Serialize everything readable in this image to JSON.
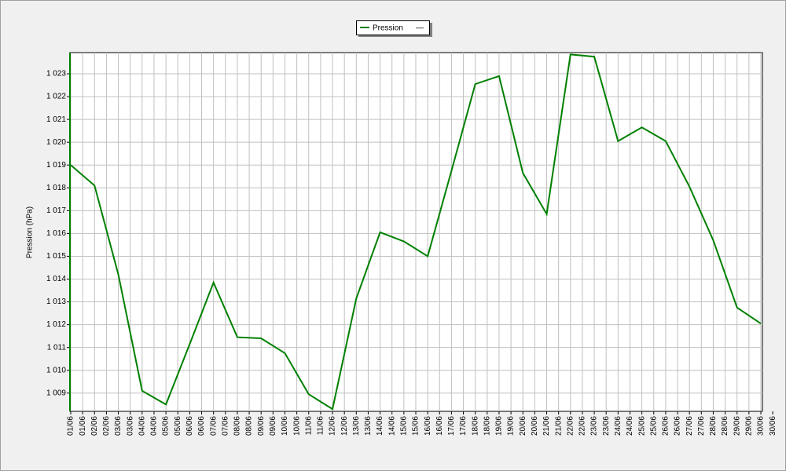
{
  "chart_data": {
    "type": "line",
    "y_label": "Pression (hPa)",
    "legend_extra": "—",
    "x_tick_labels": [
      "01/06",
      "01/06",
      "02/06",
      "02/06",
      "03/06",
      "03/06",
      "04/06",
      "04/06",
      "05/06",
      "05/06",
      "06/06",
      "06/06",
      "07/06",
      "07/06",
      "08/06",
      "08/06",
      "09/06",
      "09/06",
      "10/06",
      "10/06",
      "11/06",
      "11/06",
      "12/06",
      "12/06",
      "13/06",
      "13/06",
      "14/06",
      "14/06",
      "15/06",
      "15/06",
      "16/06",
      "16/06",
      "17/06",
      "17/06",
      "18/06",
      "18/06",
      "19/06",
      "19/06",
      "20/06",
      "20/06",
      "21/06",
      "21/06",
      "22/06",
      "22/06",
      "23/06",
      "23/06",
      "24/06",
      "24/06",
      "25/06",
      "25/06",
      "26/06",
      "26/06",
      "27/06",
      "27/06",
      "28/06",
      "28/06",
      "29/06",
      "29/06",
      "30/06",
      "30/06"
    ],
    "series": [
      {
        "name": "Pression",
        "color": "#008000",
        "values": [
          1019.0,
          1018.1,
          1014.2,
          1009.1,
          1008.5,
          1011.15,
          1013.85,
          1011.45,
          1011.4,
          1010.75,
          1008.95,
          1008.3,
          1013.15,
          1016.05,
          1015.65,
          1015.0,
          1018.75,
          1022.55,
          1022.9,
          1018.65,
          1016.85,
          1023.85,
          1023.75,
          1020.05,
          1020.65,
          1020.05,
          1018.05,
          1015.7,
          1012.75,
          1012.05
        ]
      }
    ],
    "ylim": [
      1008.2,
      1023.93
    ],
    "yticks": [
      {
        "value": 1009,
        "label": "1 009"
      },
      {
        "value": 1010,
        "label": "1 010"
      },
      {
        "value": 1011,
        "label": "1 011"
      },
      {
        "value": 1012,
        "label": "1 012"
      },
      {
        "value": 1013,
        "label": "1 013"
      },
      {
        "value": 1014,
        "label": "1 014"
      },
      {
        "value": 1015,
        "label": "1 015"
      },
      {
        "value": 1016,
        "label": "1 016"
      },
      {
        "value": 1017,
        "label": "1 017"
      },
      {
        "value": 1018,
        "label": "1 018"
      },
      {
        "value": 1019,
        "label": "1 019"
      },
      {
        "value": 1020,
        "label": "1 020"
      },
      {
        "value": 1021,
        "label": "1 021"
      },
      {
        "value": 1022,
        "label": "1 022"
      },
      {
        "value": 1023,
        "label": "1 023"
      }
    ],
    "grid": true
  }
}
